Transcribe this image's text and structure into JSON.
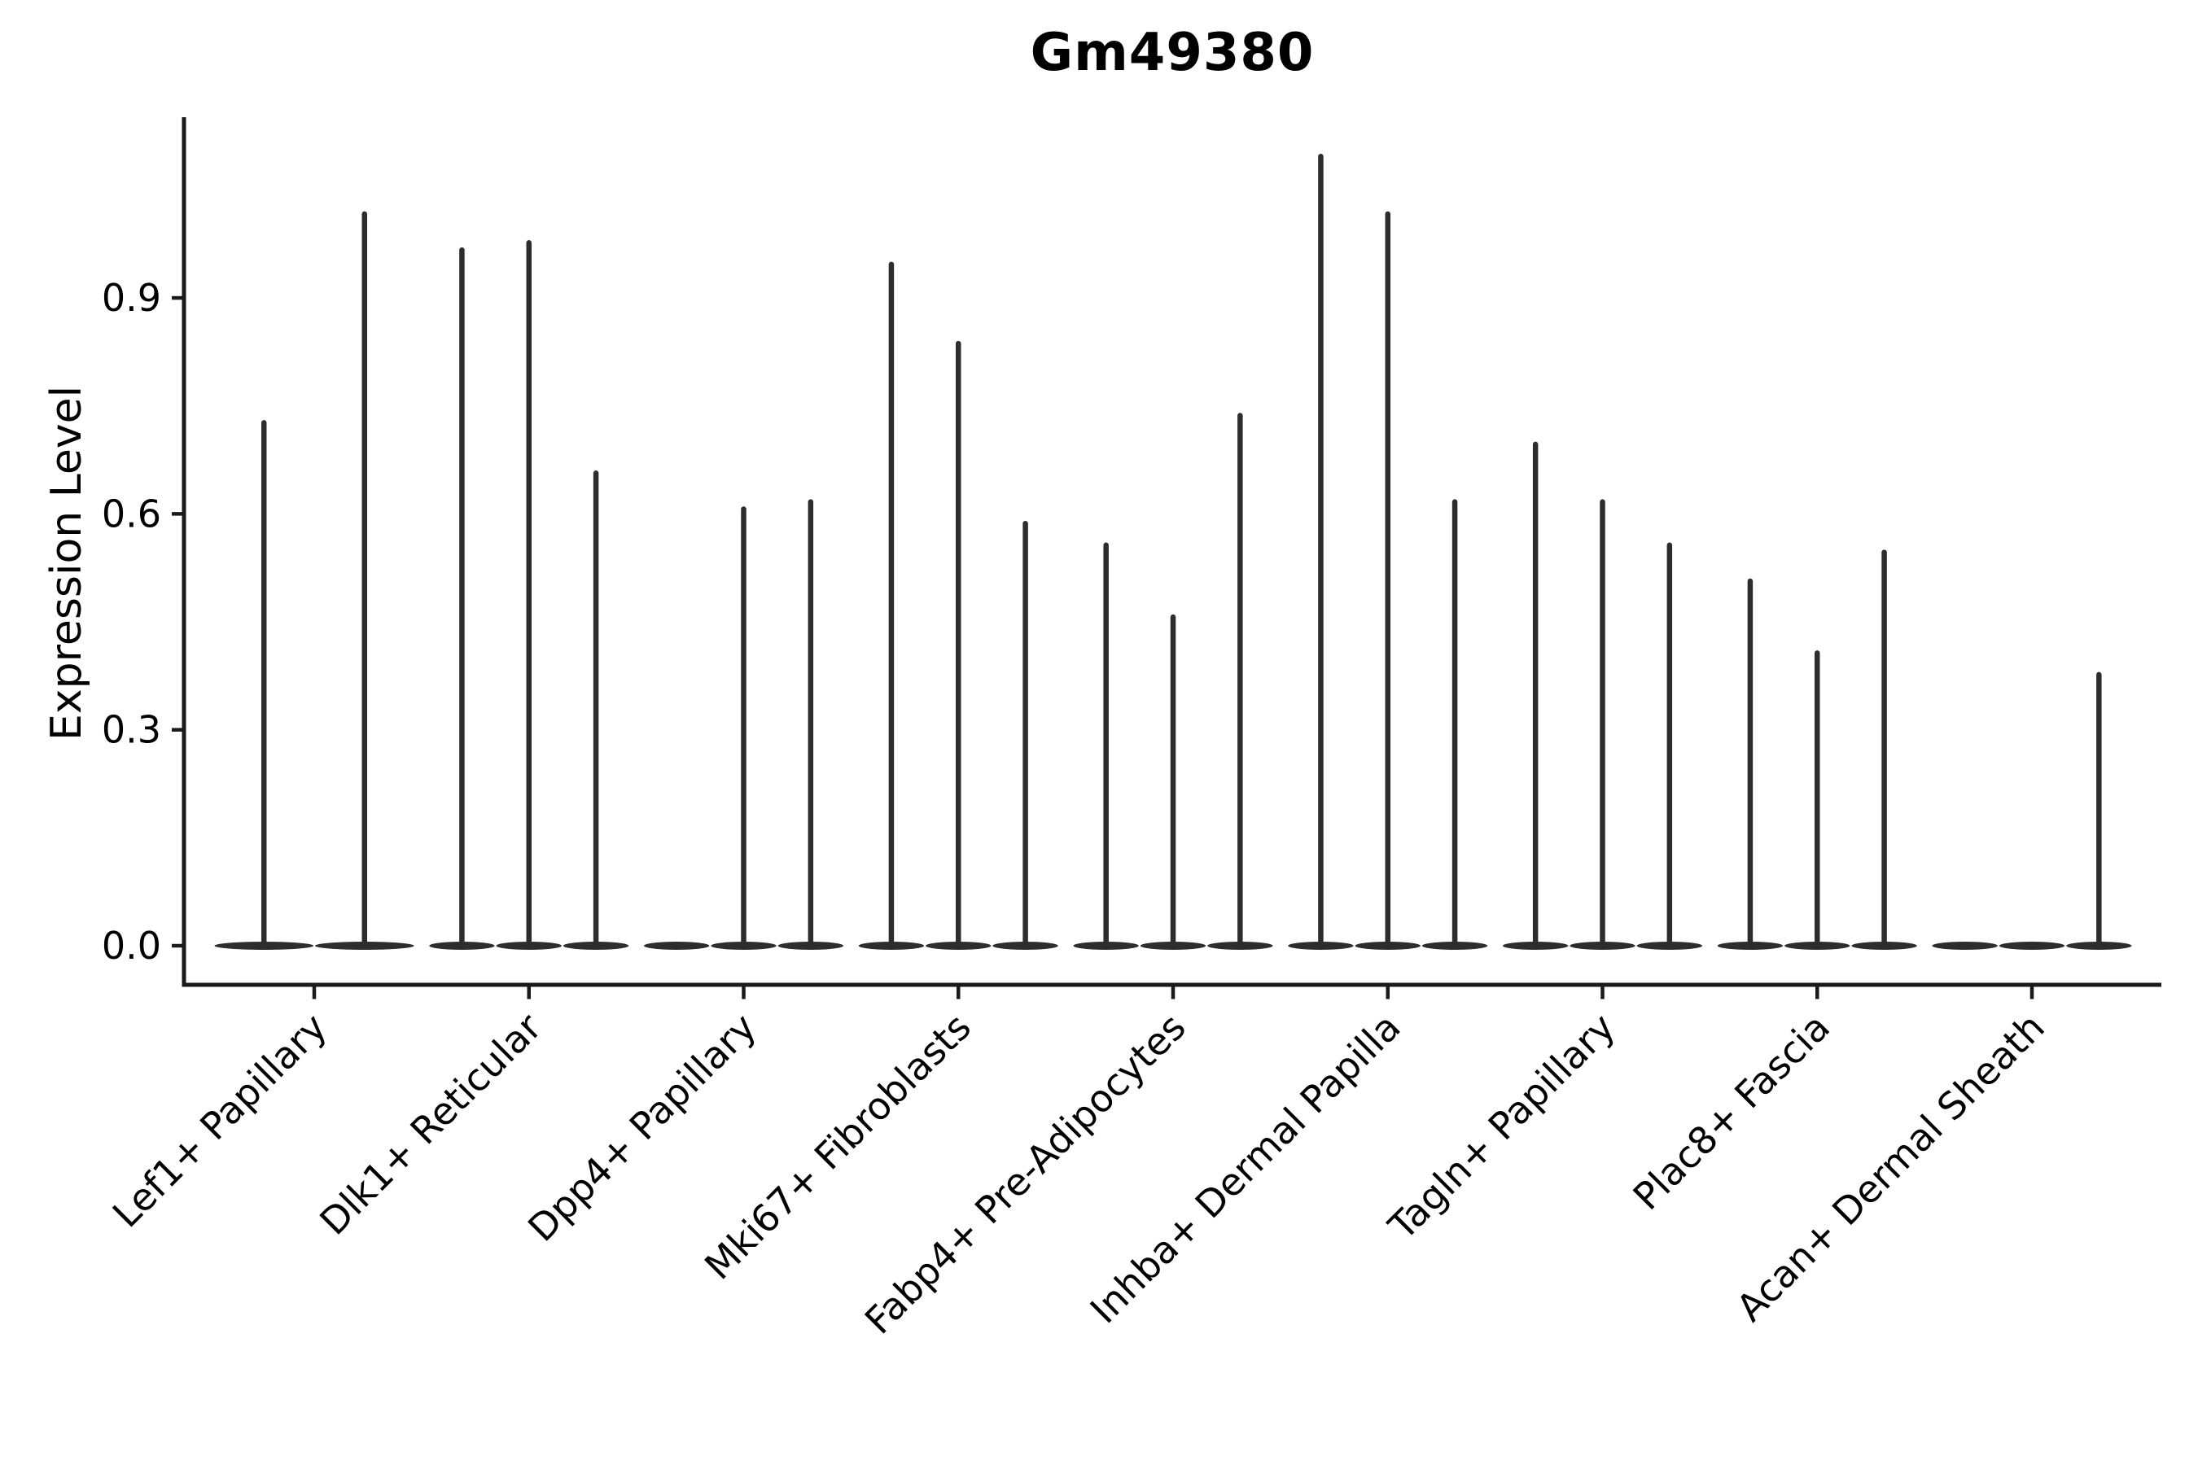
{
  "chart_data": {
    "type": "violin",
    "title": "Gm49380",
    "ylabel": "Expression Level",
    "xlabel": "",
    "yticks": [
      0.0,
      0.3,
      0.6,
      0.9
    ],
    "ylim": [
      0.0,
      1.15
    ],
    "grid": false,
    "legend": "none",
    "description": "Single-gene expression violin plot; each category holds 2-3 very thin violins (most cells at 0 expression, thin spike to max value).",
    "categories": [
      "Lef1+ Papillary",
      "Dlk1+ Reticular",
      "Dpp4+ Papillary",
      "Mki67+ Fibroblasts",
      "Fabp4+ Pre-Adipocytes",
      "Inhba+ Dermal Papilla",
      "Tagln+ Papillary",
      "Plac8+ Fascia",
      "Acan+ Dermal Sheath"
    ],
    "groups": [
      {
        "category": "Lef1+ Papillary",
        "violin_max_values": [
          0.73,
          1.02
        ]
      },
      {
        "category": "Dlk1+ Reticular",
        "violin_max_values": [
          0.97,
          0.98,
          0.66
        ]
      },
      {
        "category": "Dpp4+ Papillary",
        "violin_max_values": [
          0.0,
          0.61,
          0.62
        ]
      },
      {
        "category": "Mki67+ Fibroblasts",
        "violin_max_values": [
          0.95,
          0.84,
          0.59
        ]
      },
      {
        "category": "Fabp4+ Pre-Adipocytes",
        "violin_max_values": [
          0.56,
          0.46,
          0.74
        ]
      },
      {
        "category": "Inhba+ Dermal Papilla",
        "violin_max_values": [
          1.1,
          1.02,
          0.62
        ]
      },
      {
        "category": "Tagln+ Papillary",
        "violin_max_values": [
          0.7,
          0.62,
          0.56
        ]
      },
      {
        "category": "Plac8+ Fascia",
        "violin_max_values": [
          0.51,
          0.41,
          0.55
        ]
      },
      {
        "category": "Acan+ Dermal Sheath",
        "violin_max_values": [
          0.0,
          0.0,
          0.38
        ]
      }
    ],
    "colors": {
      "violin": "#2d2d2d",
      "axis": "#1a1a1a",
      "text": "#000000",
      "background": "#ffffff"
    }
  }
}
